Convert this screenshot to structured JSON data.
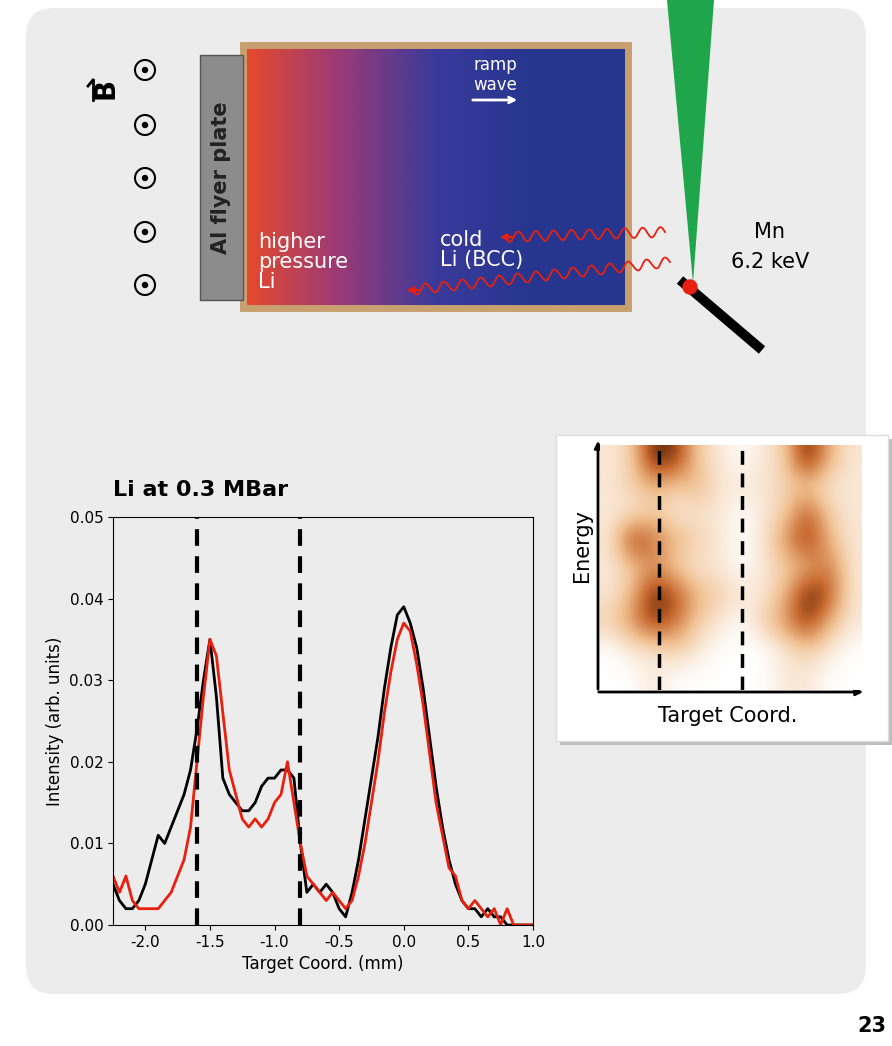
{
  "diagram": {
    "flyer_plate": "Al flyer plate",
    "field_label": "B",
    "wave_label": "ramp\nwave",
    "high_pressure_label": "higher\npressure\nLi",
    "cold_label": "cold\nLi (BCC)",
    "source_label": "Mn",
    "source_energy": "6.2 keV"
  },
  "chart_data": {
    "type": "line",
    "title": "Li at 0.3 MBar",
    "xlabel": "Target Coord. (mm)",
    "ylabel": "Intensity (arb. units)",
    "xlim": [
      -2.25,
      1.0
    ],
    "xticks": [
      -2.0,
      -1.5,
      -1.0,
      -0.5,
      0.0,
      0.5,
      1.0
    ],
    "ylim": [
      0,
      0.05
    ],
    "yticks": [
      {
        "value": 0,
        "label": "0.00"
      },
      0.01,
      0.02,
      0.03,
      0.04,
      0.05
    ],
    "vlines": [
      -1.6,
      -0.8
    ],
    "x": [
      -2.25,
      -2.2,
      -2.15,
      -2.1,
      -2.05,
      -2.0,
      -1.95,
      -1.9,
      -1.85,
      -1.8,
      -1.75,
      -1.7,
      -1.65,
      -1.6,
      -1.55,
      -1.5,
      -1.45,
      -1.4,
      -1.35,
      -1.3,
      -1.25,
      -1.2,
      -1.15,
      -1.1,
      -1.05,
      -1.0,
      -0.95,
      -0.9,
      -0.85,
      -0.8,
      -0.75,
      -0.7,
      -0.65,
      -0.6,
      -0.55,
      -0.5,
      -0.45,
      -0.4,
      -0.35,
      -0.3,
      -0.25,
      -0.2,
      -0.15,
      -0.1,
      -0.05,
      0.0,
      0.05,
      0.1,
      0.15,
      0.2,
      0.25,
      0.3,
      0.35,
      0.4,
      0.45,
      0.5,
      0.55,
      0.6,
      0.65,
      0.7,
      0.75,
      0.8,
      0.85,
      0.9,
      0.95,
      1.0
    ],
    "series": [
      {
        "color": "#000000",
        "values": [
          0.005,
          0.003,
          0.002,
          0.002,
          0.003,
          0.005,
          0.008,
          0.011,
          0.01,
          0.012,
          0.014,
          0.016,
          0.019,
          0.024,
          0.03,
          0.035,
          0.028,
          0.018,
          0.016,
          0.015,
          0.014,
          0.014,
          0.015,
          0.017,
          0.018,
          0.018,
          0.019,
          0.019,
          0.018,
          0.01,
          0.004,
          0.005,
          0.004,
          0.005,
          0.004,
          0.002,
          0.001,
          0.004,
          0.008,
          0.013,
          0.018,
          0.023,
          0.029,
          0.034,
          0.038,
          0.039,
          0.037,
          0.034,
          0.029,
          0.023,
          0.017,
          0.012,
          0.008,
          0.005,
          0.003,
          0.002,
          0.002,
          0.001,
          0.002,
          0.001,
          0.001,
          0.0,
          0.0,
          0.0,
          0.0,
          0.0
        ]
      },
      {
        "color": "#e8200f",
        "values": [
          0.006,
          0.004,
          0.006,
          0.003,
          0.002,
          0.002,
          0.002,
          0.002,
          0.003,
          0.004,
          0.006,
          0.008,
          0.012,
          0.02,
          0.028,
          0.035,
          0.033,
          0.026,
          0.019,
          0.016,
          0.013,
          0.012,
          0.013,
          0.012,
          0.013,
          0.015,
          0.016,
          0.02,
          0.015,
          0.01,
          0.006,
          0.005,
          0.004,
          0.003,
          0.004,
          0.003,
          0.002,
          0.003,
          0.006,
          0.01,
          0.015,
          0.02,
          0.026,
          0.031,
          0.035,
          0.037,
          0.036,
          0.032,
          0.027,
          0.021,
          0.015,
          0.011,
          0.007,
          0.006,
          0.003,
          0.002,
          0.003,
          0.002,
          0.001,
          0.002,
          0.0,
          0.002,
          0.0,
          0.0,
          0.0,
          0.0
        ]
      }
    ]
  },
  "inset": {
    "ylabel": "Energy",
    "xlabel": "Target Coord.",
    "vlines": [
      2.2,
      6.0
    ],
    "cells": [
      [
        0.2,
        0.3,
        0.9,
        0.8,
        0.3,
        0.2,
        0.1,
        0.2,
        0.3,
        0.9,
        0.4,
        0.2
      ],
      [
        0.2,
        0.3,
        0.4,
        0.3,
        0.4,
        0.2,
        0.2,
        0.2,
        0.3,
        0.3,
        0.2,
        0.2
      ],
      [
        0.2,
        0.2,
        0.3,
        0.2,
        0.2,
        0.2,
        0.1,
        0.2,
        0.3,
        0.7,
        0.3,
        0.2
      ],
      [
        0.2,
        0.8,
        0.6,
        0.4,
        0.3,
        0.2,
        0.1,
        0.2,
        0.5,
        0.8,
        0.4,
        0.2
      ],
      [
        0.2,
        0.3,
        0.5,
        0.3,
        0.2,
        0.2,
        0.1,
        0.2,
        0.3,
        0.4,
        0.6,
        0.2
      ],
      [
        0.2,
        0.4,
        0.9,
        0.7,
        0.4,
        0.3,
        0.2,
        0.2,
        0.4,
        0.9,
        0.7,
        0.2
      ],
      [
        0.3,
        0.5,
        0.8,
        0.6,
        0.3,
        0.2,
        0.1,
        0.3,
        0.5,
        0.8,
        0.4,
        0.2
      ],
      [
        0.1,
        0.2,
        0.2,
        0.3,
        0.2,
        0.1,
        0.1,
        0.1,
        0.2,
        0.3,
        0.2,
        0.1
      ],
      [
        0.1,
        0.1,
        0.2,
        0.1,
        0.1,
        0.1,
        0.1,
        0.1,
        0.2,
        0.2,
        0.1,
        0.1
      ]
    ]
  },
  "page_number": "23"
}
